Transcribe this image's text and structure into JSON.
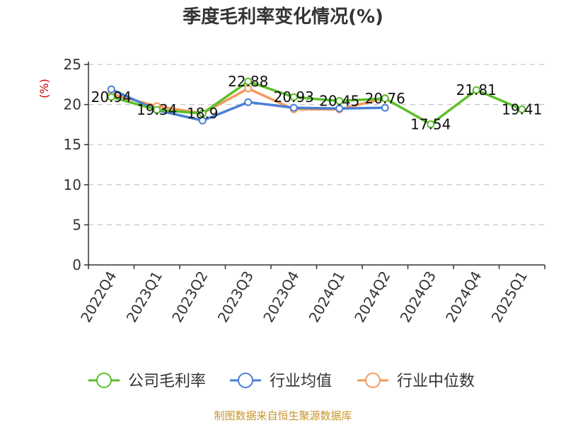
{
  "chart_data": {
    "type": "line",
    "title": "季度毛利率变化情况(%)",
    "ylabel": "(%)",
    "xlabel": "",
    "ylim": [
      0,
      25
    ],
    "yticks": [
      0,
      5,
      10,
      15,
      20,
      25
    ],
    "grid": true,
    "legend_position": "bottom",
    "categories": [
      "2022Q4",
      "2023Q1",
      "2023Q2",
      "2023Q3",
      "2023Q4",
      "2024Q1",
      "2024Q2",
      "2024Q3",
      "2024Q4",
      "2025Q1"
    ],
    "series": [
      {
        "name": "公司毛利率",
        "color": "#5cbf2a",
        "values": [
          20.94,
          19.34,
          18.9,
          22.88,
          20.93,
          20.45,
          20.76,
          17.54,
          21.81,
          19.41
        ],
        "labels": [
          "20.94",
          "19.34",
          "18.9",
          "22.88",
          "20.93",
          "20.45",
          "20.76",
          "17.54",
          "21.81",
          "19.41"
        ]
      },
      {
        "name": "行业均值",
        "color": "#4a7fd6",
        "values": [
          21.9,
          19.3,
          18.0,
          20.3,
          19.6,
          19.5,
          19.6,
          null,
          null,
          null
        ]
      },
      {
        "name": "行业中位数",
        "color": "#f59a5d",
        "values": [
          21.3,
          19.8,
          18.9,
          22.0,
          19.4,
          19.4,
          20.8,
          null,
          null,
          null
        ]
      }
    ],
    "source": "制图数据来自恒生聚源数据库"
  }
}
